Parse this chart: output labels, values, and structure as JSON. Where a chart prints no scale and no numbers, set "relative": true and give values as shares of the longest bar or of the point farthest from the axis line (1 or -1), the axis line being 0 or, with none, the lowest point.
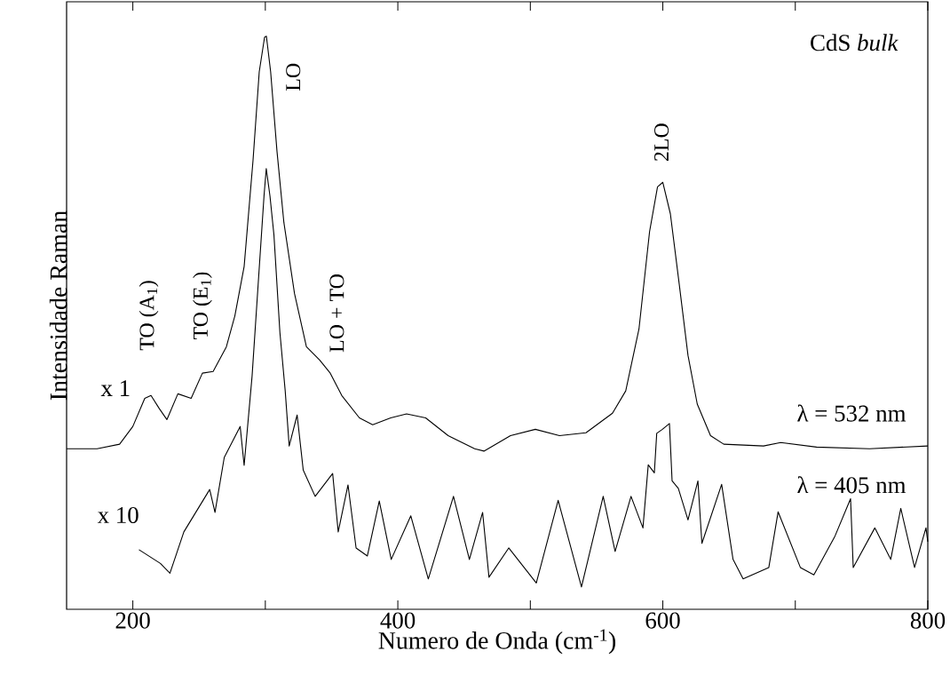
{
  "chart_data": {
    "type": "line",
    "relative": true,
    "xlabel": "Numero de Onda (cm$^{-1}$)",
    "ylabel": "Intensidade Raman",
    "xlim": [
      150,
      800
    ],
    "xticks": [
      200,
      {
        "value": 300,
        "label": null
      },
      400,
      {
        "value": 500,
        "label": null
      },
      600,
      {
        "value": 700,
        "label": null
      },
      800
    ],
    "tick_labels": "x",
    "marker": "none",
    "line_style": "solid",
    "annotations": [
      "CdS *bulk*",
      "x 1",
      "x 10",
      "TO (A$_{1}$)",
      "TO (E$_{1}$)",
      "LO",
      "LO + TO",
      "2LO"
    ],
    "series": [
      {
        "name": "λ = 532 nm",
        "color": "#000000",
        "x": [
          150,
          173,
          190,
          200,
          209,
          213.7,
          220,
          225.7,
          234,
          244,
          252.5,
          260.6,
          270.6,
          277,
          284,
          290.7,
          295.4,
          299.4,
          300.8,
          304,
          308.8,
          314,
          322,
          331,
          341,
          349,
          357.7,
          371,
          381,
          394.6,
          406.6,
          421,
          438,
          458,
          465,
          485,
          503.8,
          522,
          542,
          562,
          572,
          582,
          590,
          596,
          600,
          605.7,
          612.4,
          619,
          626,
          636,
          646,
          676,
          689,
          716,
          756,
          800
        ],
        "values": [
          0.28,
          0.28,
          0.288,
          0.319,
          0.368,
          0.373,
          0.35,
          0.331,
          0.376,
          0.368,
          0.412,
          0.415,
          0.458,
          0.512,
          0.598,
          0.783,
          0.938,
          0.998,
          1,
          0.938,
          0.799,
          0.675,
          0.551,
          0.458,
          0.435,
          0.412,
          0.373,
          0.334,
          0.322,
          0.334,
          0.341,
          0.334,
          0.303,
          0.28,
          0.276,
          0.303,
          0.314,
          0.303,
          0.308,
          0.342,
          0.381,
          0.489,
          0.659,
          0.737,
          0.745,
          0.69,
          0.567,
          0.443,
          0.358,
          0.303,
          0.288,
          0.285,
          0.291,
          0.283,
          0.28,
          0.285
        ]
      },
      {
        "name": "λ = 405 nm",
        "color": "#000000",
        "x": [
          204.6,
          220.8,
          228,
          238.5,
          258,
          262,
          269,
          281,
          284,
          290,
          294.7,
          299,
          300.7,
          303.5,
          306.5,
          311,
          315,
          318,
          324,
          328.6,
          337.6,
          350.8,
          355,
          362.4,
          368.5,
          377,
          386,
          395,
          409.8,
          423,
          442,
          454,
          464,
          468.8,
          483.7,
          504.5,
          521,
          538.6,
          555,
          564,
          576,
          585,
          589,
          593.6,
          595.4,
          599.7,
          605,
          607,
          611.7,
          619,
          626.5,
          629.5,
          644.4,
          653,
          660.6,
          680,
          687,
          703.8,
          714,
          730,
          741.7,
          743.7,
          760,
          772,
          779.6,
          790,
          798.6,
          800
        ],
        "values": [
          0.104,
          0.08,
          0.063,
          0.135,
          0.209,
          0.169,
          0.265,
          0.319,
          0.251,
          0.407,
          0.571,
          0.721,
          0.769,
          0.721,
          0.653,
          0.483,
          0.381,
          0.285,
          0.339,
          0.243,
          0.197,
          0.237,
          0.135,
          0.217,
          0.107,
          0.093,
          0.189,
          0.087,
          0.163,
          0.053,
          0.197,
          0.087,
          0.169,
          0.056,
          0.107,
          0.046,
          0.19,
          0.039,
          0.197,
          0.101,
          0.197,
          0.142,
          0.252,
          0.238,
          0.307,
          0.314,
          0.324,
          0.224,
          0.211,
          0.156,
          0.224,
          0.115,
          0.218,
          0.087,
          0.053,
          0.073,
          0.17,
          0.073,
          0.06,
          0.128,
          0.193,
          0.073,
          0.142,
          0.087,
          0.176,
          0.073,
          0.142,
          0.118
        ]
      }
    ]
  }
}
